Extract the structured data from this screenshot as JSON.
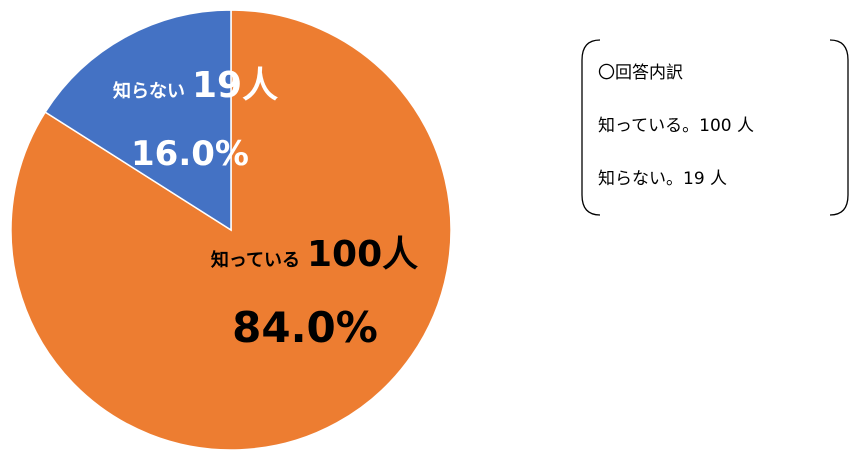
{
  "chart_data": {
    "type": "pie",
    "categories": [
      "知っている",
      "知らない"
    ],
    "values": [
      84.0,
      16.0
    ],
    "value_labels": [
      "84.0%",
      "16.0%"
    ],
    "count_labels": [
      "100人",
      "19人"
    ],
    "colors": [
      "#ED7D31",
      "#4472C4"
    ],
    "annotation": {
      "title": "〇回答内訳",
      "lines": [
        "知っている。100 人",
        "知らない。19 人"
      ]
    }
  }
}
